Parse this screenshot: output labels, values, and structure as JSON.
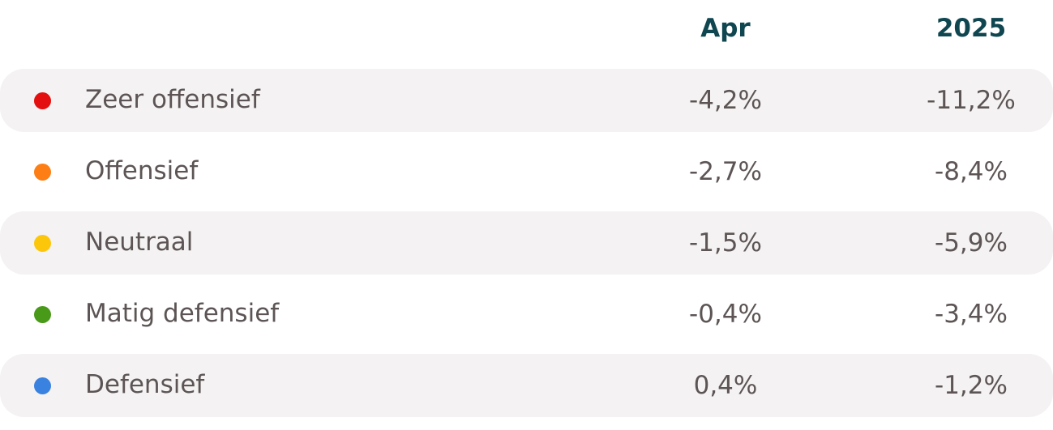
{
  "table": {
    "columns": [
      "Apr",
      "2025"
    ],
    "rows": [
      {
        "label": "Zeer offensief",
        "color": "#e3100f",
        "cells": [
          "-4,2%",
          "-11,2%"
        ]
      },
      {
        "label": "Offensief",
        "color": "#fd7e14",
        "cells": [
          "-2,7%",
          "-8,4%"
        ]
      },
      {
        "label": "Neutraal",
        "color": "#fcc70a",
        "cells": [
          "-1,5%",
          "-5,9%"
        ]
      },
      {
        "label": "Matig defensief",
        "color": "#4a9a1a",
        "cells": [
          "-0,4%",
          "-3,4%"
        ]
      },
      {
        "label": "Defensief",
        "color": "#3a82e0",
        "cells": [
          "0,4%",
          "-1,2%"
        ]
      }
    ]
  }
}
